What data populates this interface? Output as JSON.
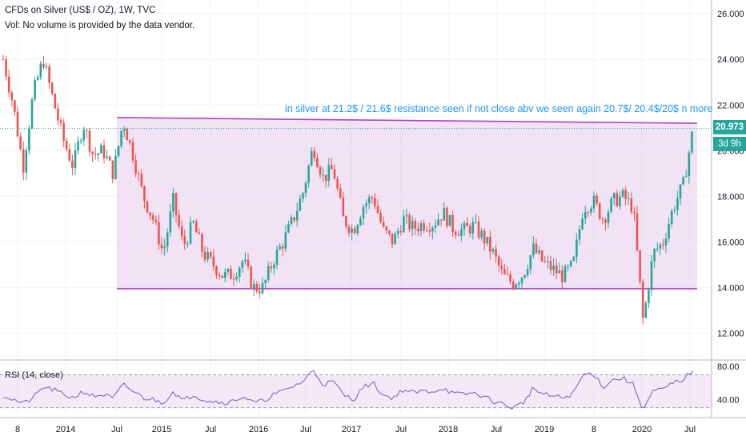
{
  "header": {
    "symbol_line": "CFDs on Silver (US$ / OZ), 1W, TVC",
    "volume_line": "Vol: No volume is provided by the data vendor."
  },
  "annotation": {
    "text": "in silver at 21.2$ / 21.6$ resistance seen if not close abv we seen again 20.7$/ 20.4$/20$ n more"
  },
  "price_tags": {
    "last_price": "20.973",
    "countdown": "3d 9h"
  },
  "rsi": {
    "label": "RSI (14, close)",
    "upper_band": 70,
    "lower_band": 30,
    "ticks": [
      "80.00",
      "40.00"
    ]
  },
  "colors": {
    "up": "#26a69a",
    "down": "#ef5350",
    "channel_line": "#ab47bc",
    "channel_fill": "#e1bee7",
    "rsi_line": "#7e57c2",
    "annotation": "#2196f3",
    "last_price_tag": "#26a69a"
  },
  "chart_data": {
    "type": "candlestick",
    "timeframe": "1W",
    "y_ticks": [
      "26.000",
      "24.000",
      "22.000",
      "20.000",
      "18.000",
      "16.000",
      "14.000",
      "12.000"
    ],
    "x_ticks": [
      "8",
      "2014",
      "Jul",
      "2015",
      "Jul",
      "2016",
      "Jul",
      "2017",
      "Jul",
      "2018",
      "Jul",
      "2019",
      "8",
      "2020",
      "Jul"
    ],
    "ylim": [
      10.9,
      26.6
    ],
    "last_price": 20.973,
    "channel": {
      "upper": {
        "from": {
          "date": "Jul 2014",
          "price": 21.45
        },
        "to": {
          "date": "Jul 2020",
          "price": 21.2
        }
      },
      "lower": {
        "from": {
          "date": "Jul 2014",
          "price": 13.95
        },
        "to": {
          "date": "Jul 2020",
          "price": 13.95
        }
      }
    },
    "price_path": [
      [
        "8",
        24.0
      ],
      [
        "",
        22.0
      ],
      [
        "",
        19.3
      ],
      [
        "",
        22.5
      ],
      [
        "",
        24.0
      ],
      [
        "",
        22.2
      ],
      [
        "2014",
        20.5
      ],
      [
        "",
        19.3
      ],
      [
        "",
        21.2
      ],
      [
        "",
        19.8
      ],
      [
        "",
        20.0
      ],
      [
        "",
        19.0
      ],
      [
        "Jul",
        21.3
      ],
      [
        "",
        19.8
      ],
      [
        "",
        18.0
      ],
      [
        "",
        17.0
      ],
      [
        "",
        15.5
      ],
      [
        "2015",
        17.8
      ],
      [
        "",
        15.8
      ],
      [
        "",
        16.8
      ],
      [
        "",
        15.5
      ],
      [
        "",
        15.0
      ],
      [
        "Jul",
        14.5
      ],
      [
        "",
        14.6
      ],
      [
        "",
        15.2
      ],
      [
        "",
        14.0
      ],
      [
        "2016",
        14.0
      ],
      [
        "",
        15.2
      ],
      [
        "",
        16.0
      ],
      [
        "",
        17.0
      ],
      [
        "",
        18.2
      ],
      [
        "Jul",
        20.2
      ],
      [
        "",
        18.8
      ],
      [
        "",
        19.2
      ],
      [
        "",
        17.0
      ],
      [
        "2017",
        16.5
      ],
      [
        "",
        17.6
      ],
      [
        "",
        18.0
      ],
      [
        "",
        16.5
      ],
      [
        "",
        16.0
      ],
      [
        "Jul",
        17.0
      ],
      [
        "",
        16.6
      ],
      [
        "",
        16.8
      ],
      [
        "",
        16.8
      ],
      [
        "2018",
        17.3
      ],
      [
        "",
        16.6
      ],
      [
        "",
        16.5
      ],
      [
        "",
        16.7
      ],
      [
        "",
        16.2
      ],
      [
        "Jul",
        15.5
      ],
      [
        "",
        14.5
      ],
      [
        "",
        14.2
      ],
      [
        "",
        14.6
      ],
      [
        "2019",
        15.7
      ],
      [
        "",
        15.1
      ],
      [
        "",
        14.8
      ],
      [
        "",
        14.5
      ],
      [
        "",
        15.0
      ],
      [
        "8",
        17.5
      ],
      [
        "",
        17.8
      ],
      [
        "",
        17.0
      ],
      [
        "",
        17.8
      ],
      [
        "2020",
        18.0
      ],
      [
        "",
        17.5
      ],
      [
        "",
        12.5
      ],
      [
        "",
        15.5
      ],
      [
        "",
        16.0
      ],
      [
        "",
        17.5
      ],
      [
        "Jul",
        18.5
      ],
      [
        "",
        20.97
      ]
    ],
    "rsi_path": [
      45,
      40,
      35,
      42,
      55,
      52,
      46,
      42,
      50,
      44,
      46,
      41,
      58,
      50,
      42,
      40,
      36,
      50,
      38,
      46,
      40,
      38,
      36,
      38,
      44,
      36,
      38,
      46,
      50,
      56,
      62,
      76,
      58,
      62,
      46,
      40,
      55,
      60,
      45,
      42,
      52,
      48,
      50,
      50,
      54,
      47,
      46,
      48,
      44,
      38,
      34,
      30,
      36,
      54,
      46,
      44,
      42,
      47,
      70,
      72,
      55,
      64,
      66,
      58,
      28,
      50,
      52,
      60,
      64,
      76
    ]
  }
}
